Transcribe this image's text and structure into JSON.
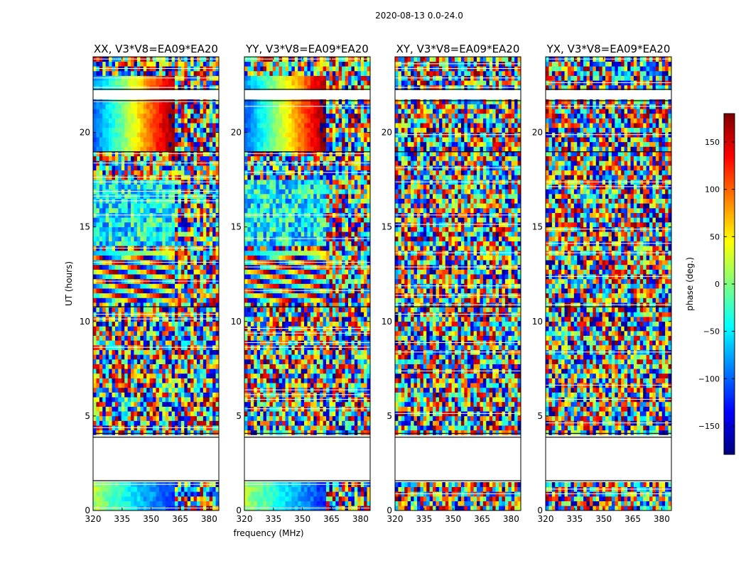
{
  "figure": {
    "suptitle": "2020-08-13 0.0-24.0"
  },
  "chart_data": [
    {
      "type": "heatmap",
      "title": "XX, V3*V8=EA09*EA20",
      "ylabel": "UT (hours)",
      "xlabel": "",
      "xlim": [
        320,
        385
      ],
      "ylim": [
        0,
        24
      ],
      "xticks": [
        "320",
        "335",
        "350",
        "365",
        "380"
      ],
      "yticks": [
        "0",
        "5",
        "10",
        "15",
        "20"
      ],
      "structure": "coherent"
    },
    {
      "type": "heatmap",
      "title": "YY, V3*V8=EA09*EA20",
      "ylabel": "",
      "xlabel": "frequency (MHz)",
      "xlim": [
        320,
        385
      ],
      "ylim": [
        0,
        24
      ],
      "xticks": [
        "320",
        "335",
        "350",
        "365",
        "380"
      ],
      "yticks": [
        "0",
        "5",
        "10",
        "15",
        "20"
      ],
      "structure": "coherent"
    },
    {
      "type": "heatmap",
      "title": "XY, V3*V8=EA09*EA20",
      "ylabel": "",
      "xlabel": "",
      "xlim": [
        320,
        385
      ],
      "ylim": [
        0,
        24
      ],
      "xticks": [
        "320",
        "335",
        "350",
        "365",
        "380"
      ],
      "yticks": [
        "0",
        "5",
        "10",
        "15",
        "20"
      ],
      "structure": "noise"
    },
    {
      "type": "heatmap",
      "title": "YX, V3*V8=EA09*EA20",
      "ylabel": "",
      "xlabel": "",
      "xlim": [
        320,
        385
      ],
      "ylim": [
        0,
        24
      ],
      "xticks": [
        "320",
        "335",
        "350",
        "365",
        "380"
      ],
      "yticks": [
        "0",
        "5",
        "10",
        "15",
        "20"
      ],
      "structure": "noise"
    }
  ],
  "flagged_ut_ranges": [
    [
      1.6,
      3.9
    ],
    [
      21.7,
      22.3
    ]
  ],
  "colorbar": {
    "label": "phase (deg.)",
    "range": [
      -180,
      180
    ],
    "ticks": [
      "150",
      "100",
      "50",
      "0",
      "−50",
      "−100",
      "−150"
    ],
    "tick_values": [
      150,
      100,
      50,
      0,
      -50,
      -100,
      -150
    ],
    "colormap": "jet",
    "colormap_stops": [
      "#00007f",
      "#0000ff",
      "#007fff",
      "#00ffff",
      "#7fff7f",
      "#ffff00",
      "#ff7f00",
      "#ff0000",
      "#7f0000"
    ]
  }
}
